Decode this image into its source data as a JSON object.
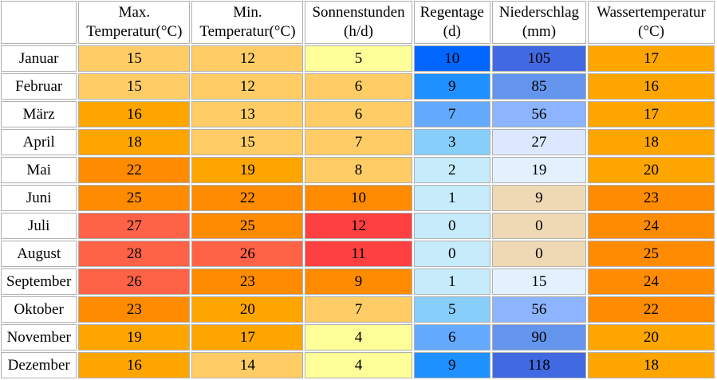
{
  "headers": [
    {
      "line1": "Max.",
      "line2": "Temperatur(°C)"
    },
    {
      "line1": "Min.",
      "line2": "Temperatur(°C)"
    },
    {
      "line1": "Sonnenstunden",
      "line2": "(h/d)"
    },
    {
      "line1": "Regentage",
      "line2": "(d)"
    },
    {
      "line1": "Niederschlag",
      "line2": "(mm)"
    },
    {
      "line1": "Wassertemperatur",
      "line2": "(°C)"
    }
  ],
  "rows": [
    {
      "month": "Januar",
      "values": [
        "15",
        "12",
        "5",
        "10",
        "105",
        "17"
      ],
      "colors": [
        "#ffcc66",
        "#ffcc66",
        "#ffff99",
        "#0066ff",
        "#4169e1",
        "#ffa500"
      ]
    },
    {
      "month": "Februar",
      "values": [
        "15",
        "12",
        "6",
        "9",
        "85",
        "16"
      ],
      "colors": [
        "#ffcc66",
        "#ffcc66",
        "#ffcc66",
        "#1e90ff",
        "#6495ed",
        "#ffa500"
      ]
    },
    {
      "month": "März",
      "values": [
        "16",
        "13",
        "6",
        "7",
        "56",
        "17"
      ],
      "colors": [
        "#ffa500",
        "#ffcc66",
        "#ffcc66",
        "#63aaff",
        "#8cb4ff",
        "#ffa500"
      ]
    },
    {
      "month": "April",
      "values": [
        "18",
        "15",
        "7",
        "3",
        "27",
        "18"
      ],
      "colors": [
        "#ffa500",
        "#ffcc66",
        "#ffcc66",
        "#87cefa",
        "#dbe8ff",
        "#ffa500"
      ]
    },
    {
      "month": "Mai",
      "values": [
        "22",
        "19",
        "8",
        "2",
        "19",
        "20"
      ],
      "colors": [
        "#ff8c00",
        "#ffa500",
        "#ffcc66",
        "#c6ebfa",
        "#e3f1ff",
        "#ffa500"
      ]
    },
    {
      "month": "Juni",
      "values": [
        "25",
        "22",
        "10",
        "1",
        "9",
        "23"
      ],
      "colors": [
        "#ff8c00",
        "#ff8c00",
        "#ff8c00",
        "#c6ebfa",
        "#efd9b5",
        "#ff8c00"
      ]
    },
    {
      "month": "Juli",
      "values": [
        "27",
        "25",
        "12",
        "0",
        "0",
        "24"
      ],
      "colors": [
        "#ff6347",
        "#ff8c00",
        "#ff4040",
        "#c6ebfa",
        "#efd9b5",
        "#ff8c00"
      ]
    },
    {
      "month": "August",
      "values": [
        "28",
        "26",
        "11",
        "0",
        "0",
        "25"
      ],
      "colors": [
        "#ff6347",
        "#ff6347",
        "#ff4040",
        "#c6ebfa",
        "#efd9b5",
        "#ff8c00"
      ]
    },
    {
      "month": "September",
      "values": [
        "26",
        "23",
        "9",
        "1",
        "15",
        "24"
      ],
      "colors": [
        "#ff6347",
        "#ff8c00",
        "#ff8c00",
        "#c6ebfa",
        "#e3f1ff",
        "#ff8c00"
      ]
    },
    {
      "month": "Oktober",
      "values": [
        "23",
        "20",
        "7",
        "5",
        "56",
        "22"
      ],
      "colors": [
        "#ff8c00",
        "#ffa500",
        "#ffcc66",
        "#87cefa",
        "#8cb4ff",
        "#ff8c00"
      ]
    },
    {
      "month": "November",
      "values": [
        "19",
        "17",
        "4",
        "6",
        "90",
        "20"
      ],
      "colors": [
        "#ffa500",
        "#ffa500",
        "#ffff99",
        "#63aaff",
        "#6495ed",
        "#ffa500"
      ]
    },
    {
      "month": "Dezember",
      "values": [
        "16",
        "14",
        "4",
        "9",
        "118",
        "18"
      ],
      "colors": [
        "#ffa500",
        "#ffcc66",
        "#ffff99",
        "#1e90ff",
        "#4169e1",
        "#ffa500"
      ]
    }
  ]
}
